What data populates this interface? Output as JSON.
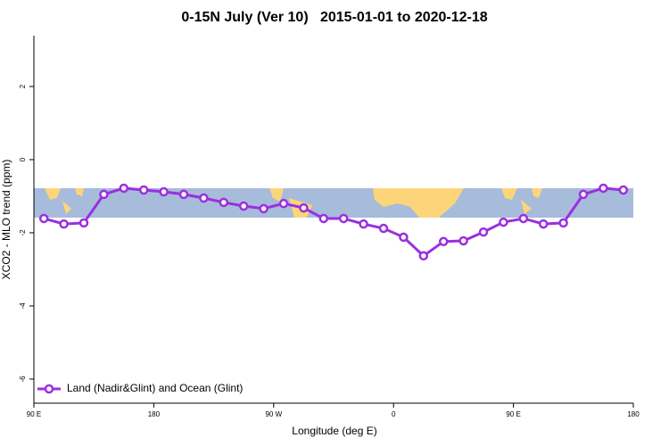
{
  "chart_data": {
    "type": "line",
    "title": "0-15N July (Ver 10)   2015-01-01 to 2020-12-18",
    "x_label": "Longitude (deg E)",
    "y_label": "XCO2 - MLO trend (ppm)",
    "x": [
      97.5,
      112.5,
      127.5,
      142.5,
      157.5,
      172.5,
      187.5,
      202.5,
      217.5,
      232.5,
      247.5,
      262.5,
      277.5,
      292.5,
      307.5,
      322.5,
      337.5,
      352.5,
      367.5,
      382.5,
      397.5,
      412.5,
      427.5,
      442.5,
      457.5,
      472.5,
      487.5,
      502.5,
      517.5,
      532.5
    ],
    "series": [
      {
        "name": "Land (Nadir&Glint) and Ocean (Glint)",
        "color": "#9b2fe0",
        "values": [
          -1.61,
          -1.76,
          -1.73,
          -0.95,
          -0.78,
          -0.83,
          -0.88,
          -0.95,
          -1.05,
          -1.17,
          -1.27,
          -1.34,
          -1.2,
          -1.32,
          -1.61,
          -1.61,
          -1.76,
          -1.88,
          -2.12,
          -2.63,
          -2.24,
          -2.22,
          -1.98,
          -1.71,
          -1.61,
          -1.76,
          -1.73,
          -0.95,
          -0.78,
          -0.83
        ]
      }
    ],
    "xlim": [
      90,
      540
    ],
    "xticks": [
      {
        "value": 90,
        "label": "90 E"
      },
      {
        "value": 180,
        "label": "180"
      },
      {
        "value": 270,
        "label": "90 W"
      },
      {
        "value": 360,
        "label": "0"
      },
      {
        "value": 450,
        "label": "90 E"
      },
      {
        "value": 540,
        "label": "180"
      }
    ],
    "ylim": [
      -6.66,
      3.39
    ],
    "yticks": [
      -6,
      -4,
      -2,
      0,
      2
    ],
    "legend": "bottom-left"
  }
}
